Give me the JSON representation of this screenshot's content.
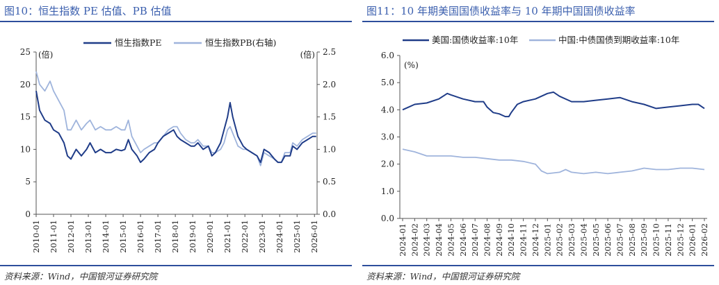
{
  "left": {
    "title": "图10：恒生指数 PE 估值、PB 估值",
    "source": "资料来源：Wind，中国银河证券研究院",
    "y_unit_left": "(倍)",
    "y_unit_right": "(倍)"
  },
  "right": {
    "title": "图11：10 年期美国国债收益率与 10 年期中国国债收益率",
    "source": "资料来源：Wind，中国银河证券研究院",
    "y_unit": "(%)"
  },
  "chart_data": [
    {
      "type": "line",
      "x": [
        "2010-01",
        "2011-01",
        "2012-01",
        "2013-01",
        "2014-01",
        "2015-01",
        "2016-01",
        "2017-01",
        "2018-01",
        "2019-01",
        "2020-01",
        "2021-01",
        "2022-01",
        "2023-01",
        "2024-01",
        "2025-01",
        "2026-01"
      ],
      "xlabels": [
        "2010-01",
        "2011-01",
        "2012-01",
        "2013-01",
        "2014-01",
        "2015-01",
        "2016-01",
        "2017-01",
        "2018-01",
        "2019-01",
        "2020-01",
        "2021-01",
        "2022-01",
        "2023-01",
        "2024-01",
        "2025-01",
        "2026-01"
      ],
      "y_left": {
        "ticks": [
          "0",
          "5",
          "10",
          "15",
          "20",
          "25"
        ],
        "ylim": [
          0,
          25
        ]
      },
      "y_right": {
        "ticks": [
          "0.0",
          "0.5",
          "1.0",
          "1.5",
          "2.0",
          "2.5"
        ],
        "ylim": [
          0,
          2.5
        ]
      },
      "series": [
        {
          "name": "恒生指数PE",
          "axis": "left",
          "color": "#1f3c88",
          "points": [
            [
              2010.0,
              19
            ],
            [
              2010.2,
              16
            ],
            [
              2010.5,
              14.5
            ],
            [
              2010.8,
              14
            ],
            [
              2011.0,
              13
            ],
            [
              2011.3,
              12.5
            ],
            [
              2011.6,
              11
            ],
            [
              2011.8,
              9
            ],
            [
              2012.0,
              8.5
            ],
            [
              2012.3,
              10
            ],
            [
              2012.6,
              9
            ],
            [
              2012.9,
              10
            ],
            [
              2013.1,
              11
            ],
            [
              2013.4,
              9.5
            ],
            [
              2013.7,
              10
            ],
            [
              2014.0,
              9.5
            ],
            [
              2014.3,
              9.5
            ],
            [
              2014.6,
              10
            ],
            [
              2014.9,
              9.8
            ],
            [
              2015.1,
              10
            ],
            [
              2015.3,
              11.5
            ],
            [
              2015.5,
              10
            ],
            [
              2015.8,
              9
            ],
            [
              2016.0,
              8
            ],
            [
              2016.2,
              8.5
            ],
            [
              2016.5,
              9.5
            ],
            [
              2016.8,
              10
            ],
            [
              2017.0,
              11
            ],
            [
              2017.3,
              12
            ],
            [
              2017.6,
              12.5
            ],
            [
              2017.9,
              13
            ],
            [
              2018.1,
              12
            ],
            [
              2018.3,
              11.5
            ],
            [
              2018.6,
              11
            ],
            [
              2018.9,
              10.5
            ],
            [
              2019.1,
              10.5
            ],
            [
              2019.3,
              11
            ],
            [
              2019.6,
              10
            ],
            [
              2019.9,
              10.5
            ],
            [
              2020.1,
              9
            ],
            [
              2020.3,
              9.5
            ],
            [
              2020.6,
              11
            ],
            [
              2020.8,
              13
            ],
            [
              2021.0,
              15
            ],
            [
              2021.15,
              17.2
            ],
            [
              2021.3,
              15
            ],
            [
              2021.6,
              12
            ],
            [
              2021.9,
              10.5
            ],
            [
              2022.1,
              10
            ],
            [
              2022.4,
              9.5
            ],
            [
              2022.7,
              9
            ],
            [
              2022.9,
              8
            ],
            [
              2023.1,
              10
            ],
            [
              2023.4,
              9.5
            ],
            [
              2023.7,
              8.5
            ],
            [
              2023.9,
              8
            ],
            [
              2024.1,
              8
            ],
            [
              2024.3,
              9
            ],
            [
              2024.6,
              9
            ],
            [
              2024.75,
              10.5
            ],
            [
              2025.0,
              10
            ],
            [
              2025.3,
              11
            ],
            [
              2025.6,
              11.5
            ],
            [
              2025.9,
              12
            ],
            [
              2026.1,
              12
            ]
          ]
        },
        {
          "name": "恒生指数PB(右轴)",
          "axis": "right",
          "color": "#9fb4dc",
          "points": [
            [
              2010.0,
              2.2
            ],
            [
              2010.2,
              2.0
            ],
            [
              2010.5,
              1.9
            ],
            [
              2010.8,
              2.05
            ],
            [
              2011.0,
              1.9
            ],
            [
              2011.3,
              1.75
            ],
            [
              2011.6,
              1.6
            ],
            [
              2011.8,
              1.3
            ],
            [
              2012.0,
              1.3
            ],
            [
              2012.3,
              1.45
            ],
            [
              2012.6,
              1.3
            ],
            [
              2012.9,
              1.4
            ],
            [
              2013.1,
              1.45
            ],
            [
              2013.4,
              1.3
            ],
            [
              2013.7,
              1.35
            ],
            [
              2014.0,
              1.3
            ],
            [
              2014.3,
              1.3
            ],
            [
              2014.6,
              1.35
            ],
            [
              2014.9,
              1.3
            ],
            [
              2015.1,
              1.3
            ],
            [
              2015.3,
              1.45
            ],
            [
              2015.5,
              1.2
            ],
            [
              2015.8,
              1.05
            ],
            [
              2016.0,
              0.95
            ],
            [
              2016.2,
              1.0
            ],
            [
              2016.5,
              1.05
            ],
            [
              2016.8,
              1.1
            ],
            [
              2017.0,
              1.1
            ],
            [
              2017.3,
              1.2
            ],
            [
              2017.6,
              1.3
            ],
            [
              2017.9,
              1.35
            ],
            [
              2018.1,
              1.35
            ],
            [
              2018.3,
              1.25
            ],
            [
              2018.6,
              1.15
            ],
            [
              2018.9,
              1.1
            ],
            [
              2019.1,
              1.1
            ],
            [
              2019.3,
              1.15
            ],
            [
              2019.6,
              1.05
            ],
            [
              2019.9,
              1.05
            ],
            [
              2020.1,
              0.95
            ],
            [
              2020.3,
              0.95
            ],
            [
              2020.6,
              1.0
            ],
            [
              2020.8,
              1.1
            ],
            [
              2021.0,
              1.3
            ],
            [
              2021.15,
              1.35
            ],
            [
              2021.3,
              1.25
            ],
            [
              2021.6,
              1.05
            ],
            [
              2021.9,
              1.0
            ],
            [
              2022.1,
              1.0
            ],
            [
              2022.4,
              0.95
            ],
            [
              2022.7,
              0.9
            ],
            [
              2022.9,
              0.75
            ],
            [
              2023.1,
              0.95
            ],
            [
              2023.4,
              0.9
            ],
            [
              2023.7,
              0.85
            ],
            [
              2023.9,
              0.8
            ],
            [
              2024.1,
              0.8
            ],
            [
              2024.3,
              0.95
            ],
            [
              2024.6,
              0.95
            ],
            [
              2024.75,
              1.1
            ],
            [
              2025.0,
              1.05
            ],
            [
              2025.3,
              1.15
            ],
            [
              2025.6,
              1.2
            ],
            [
              2025.9,
              1.25
            ],
            [
              2026.1,
              1.25
            ]
          ]
        }
      ]
    },
    {
      "type": "line",
      "xlabels": [
        "2024-01",
        "2024-02",
        "2024-03",
        "2024-04",
        "2024-05",
        "2024-06",
        "2024-07",
        "2024-08",
        "2024-09",
        "2024-10",
        "2024-11",
        "2024-12",
        "2025-01",
        "2025-02",
        "2025-03",
        "2025-04",
        "2025-05",
        "2025-06",
        "2025-07",
        "2025-08",
        "2025-09",
        "2025-10",
        "2025-11",
        "2025-12",
        "2026-01",
        "2026-02"
      ],
      "y": {
        "ticks": [
          "0.0",
          "1.0",
          "2.0",
          "3.0",
          "4.0",
          "5.0",
          "6.0"
        ],
        "ylim": [
          0,
          6
        ]
      },
      "series": [
        {
          "name": "美国:国债收益率:10年",
          "color": "#1f3c88",
          "points": [
            [
              0,
              4.0
            ],
            [
              0.5,
              4.1
            ],
            [
              1,
              4.2
            ],
            [
              2,
              4.25
            ],
            [
              3,
              4.4
            ],
            [
              3.7,
              4.6
            ],
            [
              4,
              4.55
            ],
            [
              5,
              4.4
            ],
            [
              6,
              4.3
            ],
            [
              6.7,
              4.3
            ],
            [
              7,
              4.1
            ],
            [
              7.5,
              3.9
            ],
            [
              8,
              3.85
            ],
            [
              8.5,
              3.75
            ],
            [
              8.8,
              3.75
            ],
            [
              9,
              3.9
            ],
            [
              9.5,
              4.2
            ],
            [
              10,
              4.3
            ],
            [
              11,
              4.4
            ],
            [
              12,
              4.6
            ],
            [
              12.5,
              4.65
            ],
            [
              13,
              4.5
            ],
            [
              14,
              4.3
            ],
            [
              15,
              4.3
            ],
            [
              16,
              4.35
            ],
            [
              17,
              4.4
            ],
            [
              18,
              4.45
            ],
            [
              19,
              4.3
            ],
            [
              20,
              4.2
            ],
            [
              21,
              4.05
            ],
            [
              22,
              4.1
            ],
            [
              23,
              4.15
            ],
            [
              24,
              4.2
            ],
            [
              24.5,
              4.2
            ],
            [
              25,
              4.05
            ]
          ]
        },
        {
          "name": "中国:中债国债到期收益率:10年",
          "color": "#9fb4dc",
          "points": [
            [
              0,
              2.55
            ],
            [
              1,
              2.45
            ],
            [
              2,
              2.3
            ],
            [
              3,
              2.3
            ],
            [
              4,
              2.3
            ],
            [
              5,
              2.25
            ],
            [
              6,
              2.25
            ],
            [
              7,
              2.2
            ],
            [
              8,
              2.15
            ],
            [
              9,
              2.15
            ],
            [
              10,
              2.1
            ],
            [
              11,
              2.0
            ],
            [
              11.5,
              1.75
            ],
            [
              12,
              1.65
            ],
            [
              13,
              1.7
            ],
            [
              13.5,
              1.8
            ],
            [
              14,
              1.7
            ],
            [
              15,
              1.65
            ],
            [
              16,
              1.7
            ],
            [
              17,
              1.65
            ],
            [
              18,
              1.7
            ],
            [
              19,
              1.75
            ],
            [
              20,
              1.85
            ],
            [
              21,
              1.8
            ],
            [
              22,
              1.8
            ],
            [
              23,
              1.85
            ],
            [
              24,
              1.85
            ],
            [
              25,
              1.8
            ]
          ]
        }
      ]
    }
  ]
}
